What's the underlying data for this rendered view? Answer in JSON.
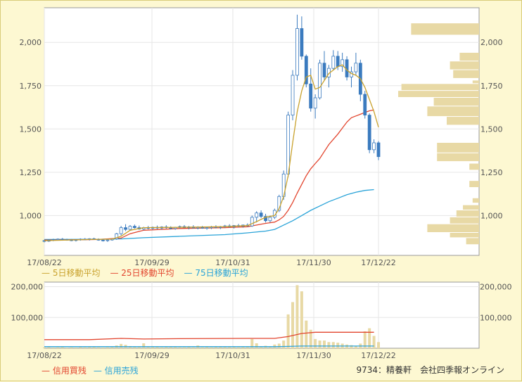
{
  "chart_data": [
    {
      "type": "candlestick",
      "x_tick_labels": [
        "17/08/22",
        "17/09/29",
        "17/10/31",
        "17/11/30",
        "17/12/22"
      ],
      "y_tick_labels": [
        "2,000",
        "1,750",
        "1,500",
        "1,250",
        "1,000"
      ],
      "y_ticks": [
        2000,
        1750,
        1500,
        1250,
        1000
      ],
      "ylim": [
        770,
        2200
      ],
      "legend": [
        "5日移動平均",
        "25日移動平均",
        "75日移動平均"
      ],
      "colors": {
        "up": "#ffffff",
        "down": "#3b7bbf",
        "ma5": "#c9a22d",
        "ma25": "#e2452e",
        "ma75": "#29a3d8",
        "volume_profile": "#e8d9a5"
      },
      "candles": [
        [
          855,
          860,
          845,
          852
        ],
        [
          852,
          862,
          848,
          858
        ],
        [
          858,
          866,
          852,
          861
        ],
        [
          861,
          868,
          856,
          864
        ],
        [
          864,
          870,
          858,
          862
        ],
        [
          862,
          866,
          855,
          859
        ],
        [
          859,
          864,
          852,
          856
        ],
        [
          856,
          863,
          850,
          860
        ],
        [
          860,
          868,
          855,
          864
        ],
        [
          864,
          870,
          859,
          862
        ],
        [
          862,
          869,
          856,
          866
        ],
        [
          866,
          872,
          860,
          863
        ],
        [
          863,
          868,
          855,
          858
        ],
        [
          858,
          864,
          850,
          855
        ],
        [
          855,
          862,
          848,
          859
        ],
        [
          859,
          868,
          855,
          865
        ],
        [
          865,
          900,
          860,
          895
        ],
        [
          895,
          940,
          885,
          930
        ],
        [
          930,
          950,
          910,
          920
        ],
        [
          920,
          945,
          912,
          938
        ],
        [
          938,
          948,
          925,
          930
        ],
        [
          930,
          942,
          918,
          922
        ],
        [
          922,
          935,
          915,
          930
        ],
        [
          930,
          940,
          920,
          926
        ],
        [
          926,
          936,
          918,
          932
        ],
        [
          932,
          942,
          922,
          928
        ],
        [
          928,
          938,
          918,
          934
        ],
        [
          934,
          944,
          924,
          930
        ],
        [
          930,
          938,
          920,
          925
        ],
        [
          925,
          935,
          918,
          932
        ],
        [
          932,
          942,
          925,
          936
        ],
        [
          936,
          945,
          928,
          930
        ],
        [
          930,
          940,
          920,
          934
        ],
        [
          934,
          944,
          926,
          928
        ],
        [
          928,
          938,
          920,
          932
        ],
        [
          932,
          940,
          924,
          927
        ],
        [
          927,
          936,
          918,
          930
        ],
        [
          930,
          940,
          922,
          935
        ],
        [
          935,
          944,
          926,
          931
        ],
        [
          931,
          940,
          922,
          936
        ],
        [
          936,
          946,
          928,
          940
        ],
        [
          940,
          950,
          930,
          935
        ],
        [
          935,
          945,
          925,
          942
        ],
        [
          942,
          952,
          932,
          938
        ],
        [
          938,
          948,
          930,
          945
        ],
        [
          945,
          955,
          935,
          940
        ],
        [
          940,
          1000,
          935,
          990
        ],
        [
          990,
          1025,
          960,
          1015
        ],
        [
          1015,
          1030,
          985,
          995
        ],
        [
          995,
          1010,
          960,
          970
        ],
        [
          970,
          1000,
          960,
          990
        ],
        [
          990,
          1040,
          980,
          1030
        ],
        [
          1030,
          1120,
          1020,
          1110
        ],
        [
          1110,
          1260,
          1090,
          1240
        ],
        [
          1240,
          1600,
          1220,
          1580
        ],
        [
          1580,
          1840,
          1550,
          1810
        ],
        [
          1810,
          2160,
          1780,
          2080
        ],
        [
          2080,
          2150,
          1900,
          1920
        ],
        [
          1920,
          1930,
          1740,
          1760
        ],
        [
          1760,
          1850,
          1600,
          1620
        ],
        [
          1620,
          1700,
          1560,
          1680
        ],
        [
          1680,
          1900,
          1670,
          1880
        ],
        [
          1880,
          1950,
          1780,
          1800
        ],
        [
          1800,
          1870,
          1740,
          1850
        ],
        [
          1850,
          1955,
          1840,
          1920
        ],
        [
          1920,
          1950,
          1840,
          1860
        ],
        [
          1860,
          1940,
          1830,
          1900
        ],
        [
          1900,
          1920,
          1780,
          1800
        ],
        [
          1800,
          1860,
          1740,
          1830
        ],
        [
          1830,
          1940,
          1810,
          1880
        ],
        [
          1880,
          1900,
          1660,
          1700
        ],
        [
          1700,
          1720,
          1560,
          1580
        ],
        [
          1580,
          1590,
          1360,
          1380
        ],
        [
          1380,
          1440,
          1360,
          1420
        ],
        [
          1420,
          1430,
          1320,
          1340
        ]
      ],
      "ma5": [
        [
          0,
          855
        ],
        [
          10,
          862
        ],
        [
          15,
          864
        ],
        [
          17,
          880
        ],
        [
          19,
          915
        ],
        [
          22,
          930
        ],
        [
          30,
          932
        ],
        [
          40,
          936
        ],
        [
          45,
          942
        ],
        [
          47,
          965
        ],
        [
          49,
          990
        ],
        [
          51,
          1000
        ],
        [
          52,
          1040
        ],
        [
          53,
          1110
        ],
        [
          54,
          1230
        ],
        [
          55,
          1420
        ],
        [
          56,
          1600
        ],
        [
          57,
          1720
        ],
        [
          58,
          1800
        ],
        [
          59,
          1810
        ],
        [
          60,
          1730
        ],
        [
          61,
          1740
        ],
        [
          62,
          1780
        ],
        [
          63,
          1820
        ],
        [
          64,
          1840
        ],
        [
          65,
          1860
        ],
        [
          66,
          1870
        ],
        [
          67,
          1840
        ],
        [
          68,
          1820
        ],
        [
          69,
          1810
        ],
        [
          70,
          1790
        ],
        [
          71,
          1740
        ],
        [
          72,
          1670
        ],
        [
          73,
          1600
        ],
        [
          74,
          1510
        ]
      ],
      "ma25": [
        [
          0,
          858
        ],
        [
          12,
          862
        ],
        [
          17,
          870
        ],
        [
          19,
          895
        ],
        [
          22,
          915
        ],
        [
          30,
          925
        ],
        [
          40,
          930
        ],
        [
          45,
          935
        ],
        [
          47,
          945
        ],
        [
          49,
          955
        ],
        [
          51,
          962
        ],
        [
          52,
          975
        ],
        [
          53,
          995
        ],
        [
          54,
          1030
        ],
        [
          55,
          1075
        ],
        [
          56,
          1130
        ],
        [
          57,
          1180
        ],
        [
          58,
          1230
        ],
        [
          59,
          1270
        ],
        [
          60,
          1300
        ],
        [
          61,
          1330
        ],
        [
          62,
          1370
        ],
        [
          63,
          1410
        ],
        [
          64,
          1440
        ],
        [
          65,
          1470
        ],
        [
          66,
          1505
        ],
        [
          67,
          1540
        ],
        [
          68,
          1565
        ],
        [
          69,
          1575
        ],
        [
          70,
          1585
        ],
        [
          71,
          1595
        ],
        [
          72,
          1605
        ],
        [
          73,
          1610
        ]
      ],
      "ma75": [
        [
          0,
          862
        ],
        [
          12,
          863
        ],
        [
          17,
          865
        ],
        [
          22,
          872
        ],
        [
          30,
          880
        ],
        [
          40,
          890
        ],
        [
          45,
          900
        ],
        [
          49,
          910
        ],
        [
          51,
          920
        ],
        [
          52,
          932
        ],
        [
          53,
          945
        ],
        [
          55,
          970
        ],
        [
          57,
          1000
        ],
        [
          59,
          1030
        ],
        [
          61,
          1055
        ],
        [
          63,
          1080
        ],
        [
          65,
          1100
        ],
        [
          67,
          1120
        ],
        [
          69,
          1135
        ],
        [
          71,
          1145
        ],
        [
          73,
          1150
        ]
      ],
      "volume_profile": [
        [
          2110,
          2040,
          21
        ],
        [
          1940,
          1890,
          6
        ],
        [
          1890,
          1840,
          9
        ],
        [
          1840,
          1790,
          8
        ],
        [
          1780,
          1760,
          2
        ],
        [
          1760,
          1720,
          24
        ],
        [
          1720,
          1680,
          25
        ],
        [
          1680,
          1630,
          14
        ],
        [
          1630,
          1570,
          16
        ],
        [
          1570,
          1520,
          10
        ],
        [
          1420,
          1360,
          13
        ],
        [
          1360,
          1310,
          13
        ],
        [
          1300,
          1260,
          3
        ],
        [
          1200,
          1160,
          3
        ],
        [
          1100,
          1070,
          2
        ],
        [
          1060,
          1030,
          5
        ],
        [
          1030,
          990,
          7
        ],
        [
          990,
          950,
          9
        ],
        [
          950,
          900,
          16
        ],
        [
          900,
          870,
          9
        ],
        [
          870,
          830,
          4
        ]
      ]
    },
    {
      "type": "bar",
      "x_tick_labels": [
        "17/08/22",
        "17/09/29",
        "17/10/31",
        "17/11/30",
        "17/12/22"
      ],
      "y_tick_labels": [
        "200,000",
        "100,000"
      ],
      "y_ticks": [
        200000,
        100000
      ],
      "ylim": [
        0,
        215000
      ],
      "legend": [
        "信用買残",
        "信用売残"
      ],
      "colors": {
        "volume": "#e8d9a5",
        "buy": "#e2452e",
        "sell": "#29a3d8"
      },
      "volume": [
        3000,
        4000,
        2500,
        3000,
        3500,
        2000,
        3000,
        2500,
        4000,
        3000,
        5000,
        4000,
        3000,
        2500,
        3000,
        4000,
        9000,
        14000,
        11000,
        7000,
        6000,
        4000,
        16000,
        4000,
        6000,
        5000,
        3000,
        4000,
        5000,
        4000,
        3000,
        3000,
        4000,
        3000,
        9000,
        3000,
        4000,
        3000,
        5000,
        6000,
        4000,
        5000,
        4000,
        3000,
        4000,
        5000,
        30000,
        16000,
        6000,
        8000,
        5000,
        12000,
        15000,
        25000,
        110000,
        150000,
        205000,
        185000,
        90000,
        60000,
        30000,
        25000,
        25000,
        20000,
        20000,
        18000,
        15000,
        12000,
        10000,
        8000,
        15000,
        55000,
        65000,
        40000,
        20000
      ],
      "buy_margin": [
        [
          0,
          28000
        ],
        [
          10,
          28000
        ],
        [
          17,
          32000
        ],
        [
          22,
          30000
        ],
        [
          30,
          31000
        ],
        [
          45,
          32000
        ],
        [
          51,
          32000
        ],
        [
          54,
          38000
        ],
        [
          57,
          48000
        ],
        [
          60,
          52000
        ],
        [
          64,
          52000
        ],
        [
          73,
          52000
        ]
      ],
      "sell_margin": [
        [
          0,
          5000
        ],
        [
          30,
          5000
        ],
        [
          51,
          5000
        ],
        [
          54,
          6000
        ],
        [
          57,
          7000
        ],
        [
          73,
          7000
        ]
      ]
    }
  ],
  "legend_top": {
    "items": [
      {
        "text": "— 5日移動平均",
        "color": "#c9a22d"
      },
      {
        "text": "— 25日移動平均",
        "color": "#e2452e"
      },
      {
        "text": "— 75日移動平均",
        "color": "#29a3d8"
      }
    ]
  },
  "legend_bottom": {
    "items": [
      {
        "text": "— 信用買残",
        "color": "#e2452e"
      },
      {
        "text": "— 信用売残",
        "color": "#29a3d8"
      }
    ]
  },
  "credit": "9734：精養軒　会社四季報オンライン"
}
